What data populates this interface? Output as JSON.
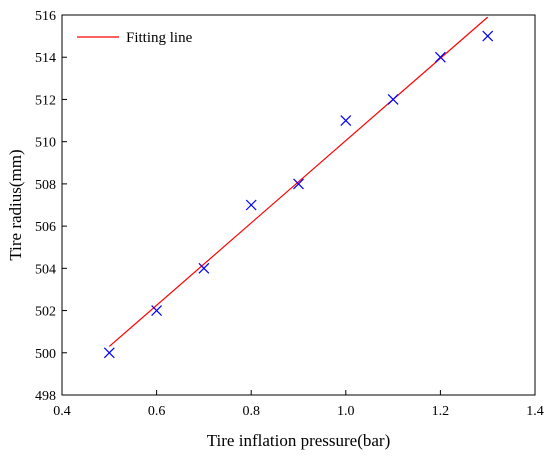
{
  "chart_data": {
    "type": "scatter",
    "xlabel": "Tire inflation pressure(bar)",
    "ylabel": "Tire radius(mm)",
    "xlim": [
      0.4,
      1.4
    ],
    "ylim": [
      498,
      516
    ],
    "xticks": [
      "0.4",
      "0.6",
      "0.8",
      "1.0",
      "1.2",
      "1.4"
    ],
    "yticks": [
      "498",
      "500",
      "502",
      "504",
      "506",
      "508",
      "510",
      "512",
      "514",
      "516"
    ],
    "grid": false,
    "legend_position": "top-left",
    "series": [
      {
        "type": "scatter",
        "marker": "x",
        "color": "#0000ff",
        "x": [
          0.5,
          0.6,
          0.7,
          0.8,
          0.9,
          1.0,
          1.1,
          1.2,
          1.3
        ],
        "y": [
          500,
          502,
          504,
          507,
          508,
          511,
          512,
          514,
          515
        ]
      },
      {
        "type": "line",
        "name": "Fitting line",
        "color": "#ff0000",
        "x": [
          0.5,
          1.3
        ],
        "y": [
          500.3,
          515.9
        ]
      }
    ]
  }
}
